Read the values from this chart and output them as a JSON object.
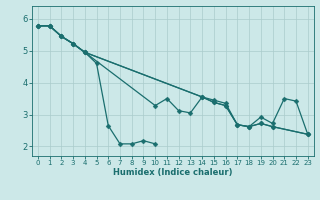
{
  "xlabel": "Humidex (Indice chaleur)",
  "background_color": "#cce8e8",
  "grid_color": "#aacccc",
  "line_color": "#1a6e6e",
  "markersize": 2.5,
  "linewidth": 0.9,
  "xlim": [
    -0.5,
    23.5
  ],
  "ylim": [
    1.7,
    6.4
  ],
  "yticks": [
    2,
    3,
    4,
    5,
    6
  ],
  "xticks": [
    0,
    1,
    2,
    3,
    4,
    5,
    6,
    7,
    8,
    9,
    10,
    11,
    12,
    13,
    14,
    15,
    16,
    17,
    18,
    19,
    20,
    21,
    22,
    23
  ],
  "series": [
    [
      [
        0,
        5.78
      ],
      [
        1,
        5.78
      ],
      [
        2,
        5.45
      ],
      [
        3,
        5.22
      ],
      [
        4,
        4.95
      ],
      [
        5,
        4.6
      ],
      [
        6,
        2.65
      ],
      [
        7,
        2.08
      ],
      [
        8,
        2.08
      ],
      [
        9,
        2.18
      ],
      [
        10,
        2.08
      ]
    ],
    [
      [
        0,
        5.78
      ],
      [
        1,
        5.78
      ],
      [
        2,
        5.45
      ],
      [
        3,
        5.22
      ],
      [
        4,
        4.95
      ],
      [
        10,
        3.28
      ],
      [
        11,
        3.5
      ],
      [
        12,
        3.12
      ],
      [
        13,
        3.05
      ],
      [
        14,
        3.55
      ],
      [
        15,
        3.45
      ],
      [
        16,
        3.35
      ],
      [
        17,
        2.68
      ],
      [
        18,
        2.62
      ],
      [
        19,
        2.92
      ],
      [
        20,
        2.72
      ],
      [
        21,
        3.5
      ],
      [
        22,
        3.42
      ],
      [
        23,
        2.38
      ]
    ],
    [
      [
        0,
        5.78
      ],
      [
        1,
        5.78
      ],
      [
        2,
        5.45
      ],
      [
        3,
        5.22
      ],
      [
        4,
        4.95
      ],
      [
        14,
        3.55
      ],
      [
        15,
        3.38
      ],
      [
        16,
        3.28
      ],
      [
        17,
        2.68
      ],
      [
        18,
        2.62
      ],
      [
        19,
        2.72
      ],
      [
        20,
        2.62
      ],
      [
        23,
        2.38
      ]
    ],
    [
      [
        0,
        5.78
      ],
      [
        1,
        5.78
      ],
      [
        2,
        5.45
      ],
      [
        3,
        5.22
      ],
      [
        4,
        4.95
      ],
      [
        14,
        3.55
      ],
      [
        15,
        3.38
      ],
      [
        16,
        3.28
      ],
      [
        17,
        2.68
      ],
      [
        18,
        2.62
      ],
      [
        19,
        2.72
      ],
      [
        20,
        2.62
      ],
      [
        23,
        2.38
      ]
    ]
  ]
}
